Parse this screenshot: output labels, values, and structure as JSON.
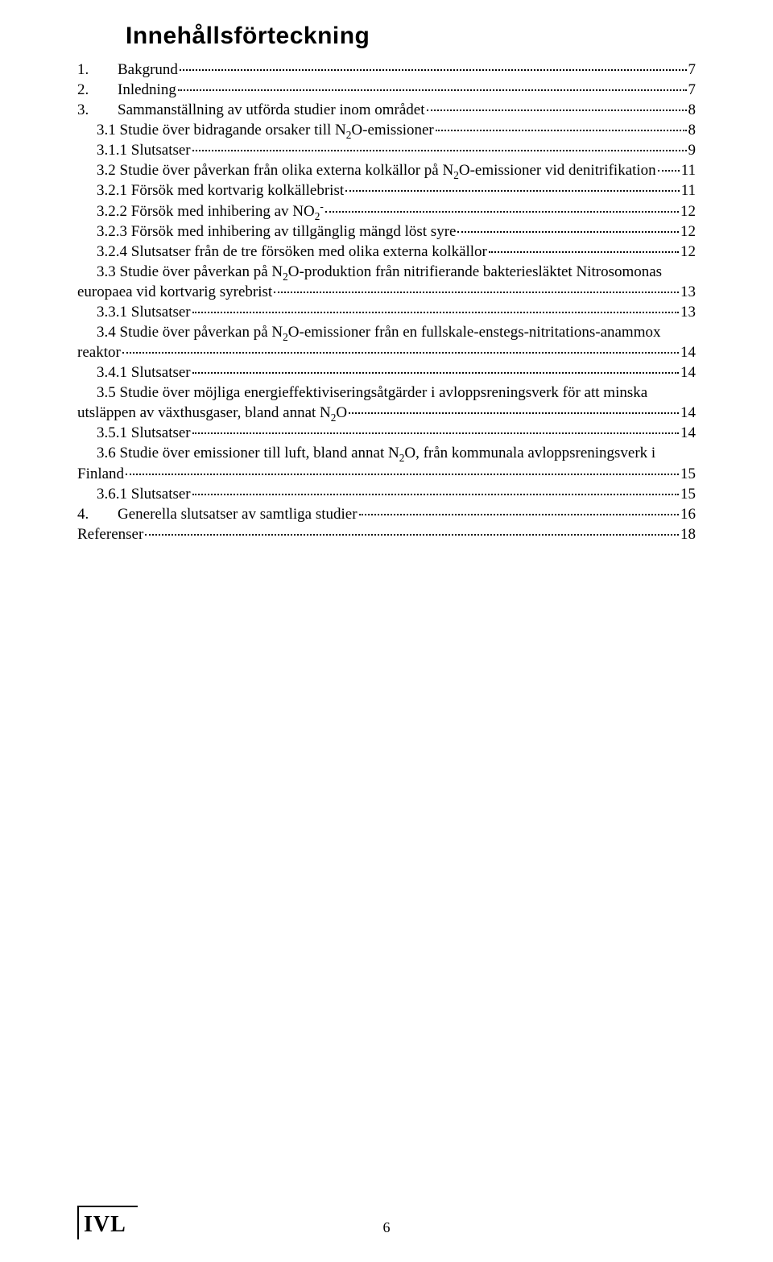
{
  "colors": {
    "background": "#ffffff",
    "text": "#000000",
    "leader": "#000000"
  },
  "typography": {
    "heading_font": "Arial",
    "heading_size_pt": 22,
    "body_font": "Garamond",
    "body_size_pt": 14
  },
  "title": "Innehållsförteckning",
  "toc": [
    {
      "level": 0,
      "num": "1.",
      "label": "Bakgrund",
      "page": "7"
    },
    {
      "level": 0,
      "num": "2.",
      "label": "Inledning",
      "page": "7"
    },
    {
      "level": 0,
      "num": "3.",
      "label": "Sammanställning av utförda studier inom området",
      "page": "8"
    },
    {
      "level": 1,
      "num": "",
      "label": "3.1 Studie över bidragande orsaker till N<sub>2</sub>O-emissioner",
      "page": "8"
    },
    {
      "level": 2,
      "num": "",
      "label": "3.1.1 Slutsatser",
      "page": "9"
    },
    {
      "level": 1,
      "num": "",
      "label": "3.2 Studie över påverkan från olika externa kolkällor på N<sub>2</sub>O-emissioner vid denitrifikation",
      "page": "11"
    },
    {
      "level": 2,
      "num": "",
      "label": "3.2.1 Försök med kortvarig kolkällebrist",
      "page": "11"
    },
    {
      "level": 2,
      "num": "",
      "label": "3.2.2 Försök med inhibering av NO<sub>2</sub><sup>-</sup>",
      "page": "12"
    },
    {
      "level": 2,
      "num": "",
      "label": "3.2.3 Försök med inhibering av tillgänglig mängd löst syre",
      "page": "12"
    },
    {
      "level": 2,
      "num": "",
      "label": "3.2.4 Slutsatser från de tre försöken med olika externa kolkällor",
      "page": "12"
    },
    {
      "level": 1,
      "num": "",
      "label_line1": "3.3 Studie över påverkan på N<sub>2</sub>O-produktion från nitrifierande bakteriesläktet Nitrosomonas",
      "label_line2": "europaea vid kortvarig syrebrist",
      "page": "13",
      "wrap": true,
      "wrap_indent": "noindent"
    },
    {
      "level": 2,
      "num": "",
      "label": "3.3.1 Slutsatser",
      "page": "13"
    },
    {
      "level": 1,
      "num": "",
      "label_line1": "3.4 Studie över påverkan på N<sub>2</sub>O-emissioner från en fullskale-enstegs-nitritations-anammox",
      "label_line2": "reaktor",
      "page": "14",
      "wrap": true,
      "wrap_indent": "noindent"
    },
    {
      "level": 2,
      "num": "",
      "label": "3.4.1 Slutsatser",
      "page": "14"
    },
    {
      "level": 1,
      "num": "",
      "label_line1": "3.5 Studie över möjliga energieffektiviseringsåtgärder i avloppsreningsverk för att minska",
      "label_line2": "utsläppen av växthusgaser, bland annat N<sub>2</sub>O",
      "page": "14",
      "wrap": true,
      "wrap_indent": "noindent"
    },
    {
      "level": 2,
      "num": "",
      "label": "3.5.1 Slutsatser",
      "page": "14"
    },
    {
      "level": 1,
      "num": "",
      "label_line1": "3.6 Studie över emissioner till luft, bland annat N<sub>2</sub>O, från kommunala avloppsreningsverk i",
      "label_line2": "Finland",
      "page": "15",
      "wrap": true,
      "wrap_indent": "noindent"
    },
    {
      "level": 2,
      "num": "",
      "label": "3.6.1 Slutsatser",
      "page": "15"
    },
    {
      "level": 0,
      "num": "4.",
      "label": "Generella slutsatser av samtliga studier",
      "page": "16"
    },
    {
      "level": -1,
      "num": "",
      "label": "Referenser",
      "page": "18"
    }
  ],
  "footer": {
    "logo_text": "IVL",
    "page_number": "6"
  }
}
